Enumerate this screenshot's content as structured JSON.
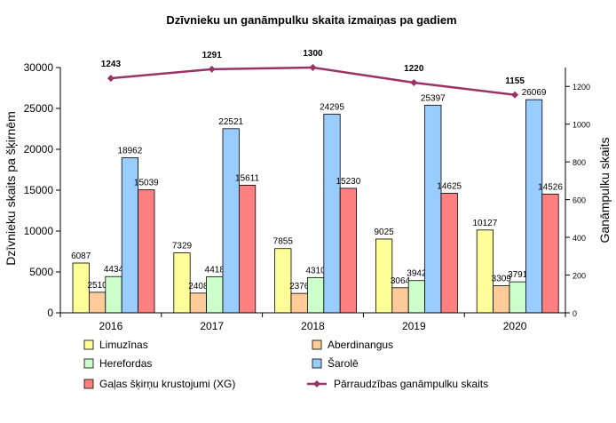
{
  "chart_data": {
    "type": "bar",
    "title": "Dzīvnieku un ganāmpulku skaita izmaiņas pa gadiem",
    "ylabel": "Dzīvnieku skaits pa šķirnēm",
    "y2label": "Ganāmpulku skaits",
    "categories": [
      "2016",
      "2017",
      "2018",
      "2019",
      "2020"
    ],
    "ylim": [
      0,
      30000
    ],
    "yticks": [
      "0",
      "5000",
      "10000",
      "15000",
      "20000",
      "25000",
      "30000"
    ],
    "y2lim": [
      0,
      1300
    ],
    "y2ticks": [
      "0",
      "200",
      "400",
      "600",
      "800",
      "1000",
      "1200"
    ],
    "grid": false,
    "legend_position": "bottom",
    "series": [
      {
        "name": "Limuzīnas",
        "color": "#ffff99",
        "values": [
          6087,
          7329,
          7855,
          9025,
          10127
        ]
      },
      {
        "name": "Aberdinangus",
        "color": "#ffcc99",
        "values": [
          2510,
          2408,
          2376,
          3064,
          3309
        ]
      },
      {
        "name": "Herefordas",
        "color": "#ccffcc",
        "values": [
          4434,
          4418,
          4310,
          3942,
          3791
        ]
      },
      {
        "name": "Šarolē",
        "color": "#99ccff",
        "values": [
          18962,
          22521,
          24295,
          25397,
          26069
        ]
      },
      {
        "name": "Gaļas šķirņu krustojumi (XG)",
        "color": "#ff8080",
        "values": [
          15039,
          15611,
          15230,
          14625,
          14526
        ]
      }
    ],
    "line_series": {
      "name": "Pārraudzības ganāmpulku skaits",
      "color": "#993366",
      "axis": "right",
      "values": [
        1243,
        1291,
        1300,
        1220,
        1155
      ]
    }
  }
}
